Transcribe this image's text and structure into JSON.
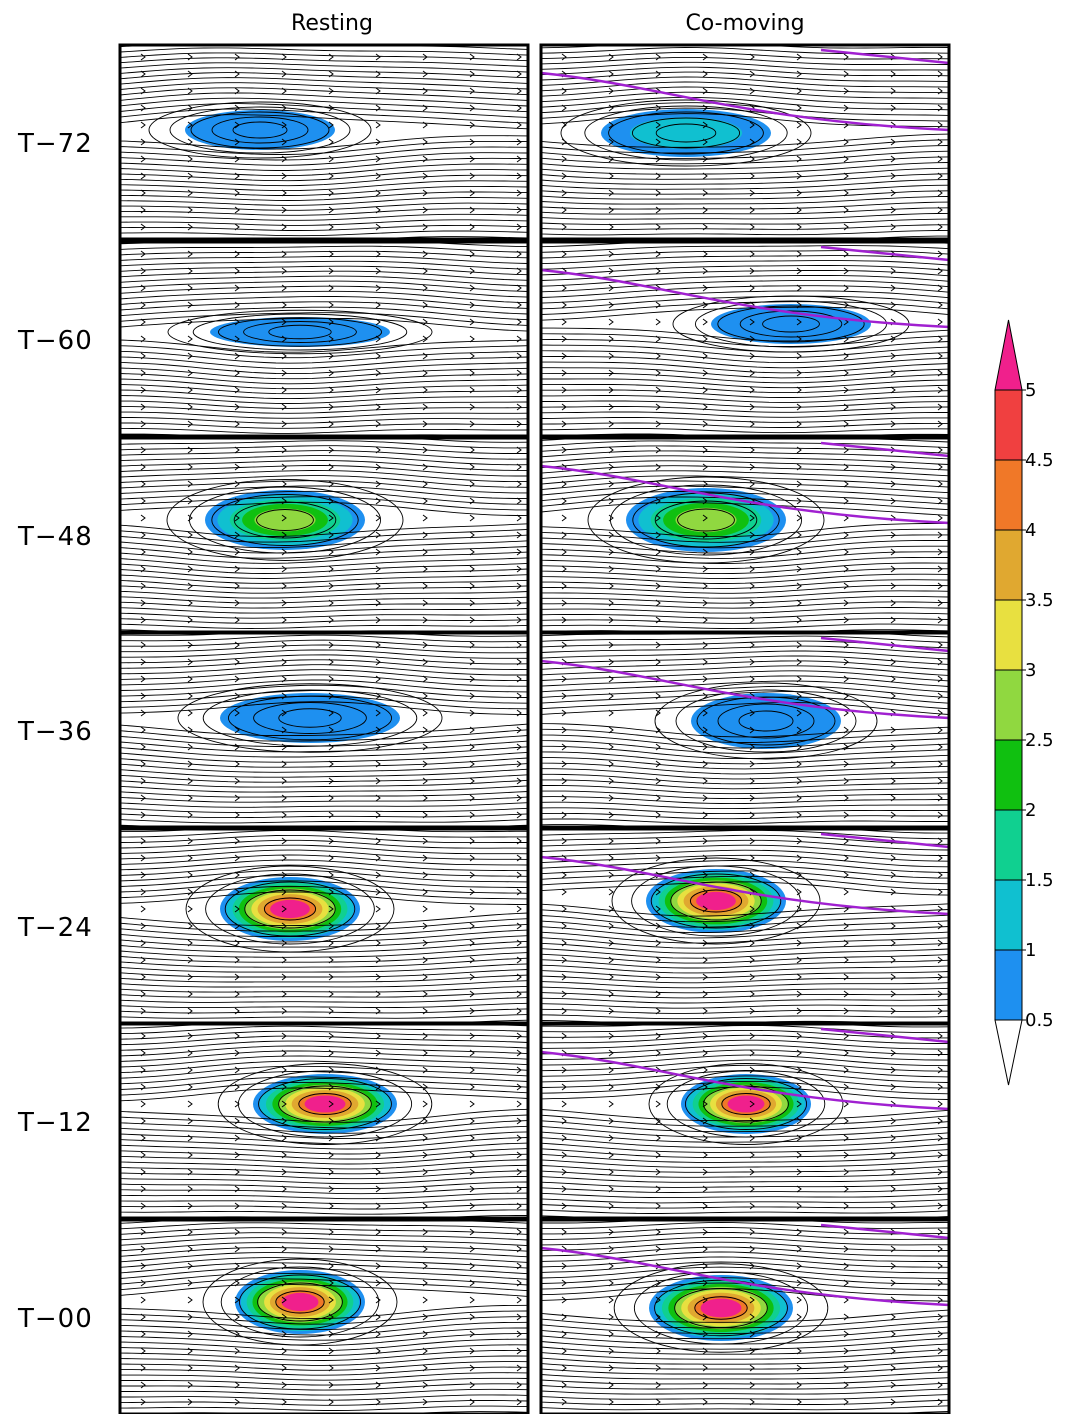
{
  "figure": {
    "columns": [
      "Resting",
      "Co-moving"
    ],
    "rows": [
      "T−72",
      "T−60",
      "T−48",
      "T−36",
      "T−24",
      "T−12",
      "T−00"
    ],
    "colorbar": {
      "ticks": [
        0.5,
        1,
        1.5,
        2,
        2.5,
        3,
        3.5,
        4,
        4.5,
        5
      ],
      "colors": [
        "#1e90f0",
        "#10c0d0",
        "#10d090",
        "#10c010",
        "#90d840",
        "#e8e040",
        "#e0a830",
        "#f07828",
        "#f04040"
      ],
      "over_color": "#f0208c",
      "under_color": "#ffffff"
    }
  }
}
